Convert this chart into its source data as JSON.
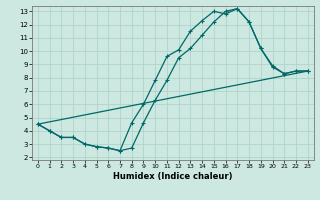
{
  "xlabel": "Humidex (Indice chaleur)",
  "bg_color": "#cde8e0",
  "grid_color": "#afd4cc",
  "line_color": "#006868",
  "xlim": [
    -0.5,
    23.5
  ],
  "ylim": [
    1.8,
    13.4
  ],
  "yticks": [
    2,
    3,
    4,
    5,
    6,
    7,
    8,
    9,
    10,
    11,
    12,
    13
  ],
  "xticks": [
    0,
    1,
    2,
    3,
    4,
    5,
    6,
    7,
    8,
    9,
    10,
    11,
    12,
    13,
    14,
    15,
    16,
    17,
    18,
    19,
    20,
    21,
    22,
    23
  ],
  "line1_x": [
    0,
    1,
    2,
    3,
    4,
    5,
    6,
    7,
    8,
    9,
    10,
    11,
    12,
    13,
    14,
    15,
    16,
    17,
    18,
    19,
    20,
    21,
    22,
    23
  ],
  "line1_y": [
    4.5,
    4.0,
    3.5,
    3.5,
    3.0,
    2.8,
    2.7,
    2.5,
    4.6,
    6.0,
    7.8,
    9.6,
    10.1,
    11.5,
    12.3,
    13.0,
    12.8,
    13.2,
    12.2,
    10.2,
    8.9,
    8.3,
    8.5,
    8.5
  ],
  "line2_x": [
    0,
    1,
    2,
    3,
    4,
    5,
    6,
    7,
    8,
    9,
    10,
    11,
    12,
    13,
    14,
    15,
    16,
    17,
    18,
    19,
    20,
    21,
    22,
    23
  ],
  "line2_y": [
    4.5,
    4.0,
    3.5,
    3.5,
    3.0,
    2.8,
    2.7,
    2.5,
    2.7,
    4.6,
    6.3,
    7.8,
    9.5,
    10.2,
    11.2,
    12.2,
    13.0,
    13.2,
    12.2,
    10.2,
    8.8,
    8.3,
    8.5,
    8.5
  ],
  "line3_x": [
    0,
    23
  ],
  "line3_y": [
    4.5,
    8.5
  ]
}
